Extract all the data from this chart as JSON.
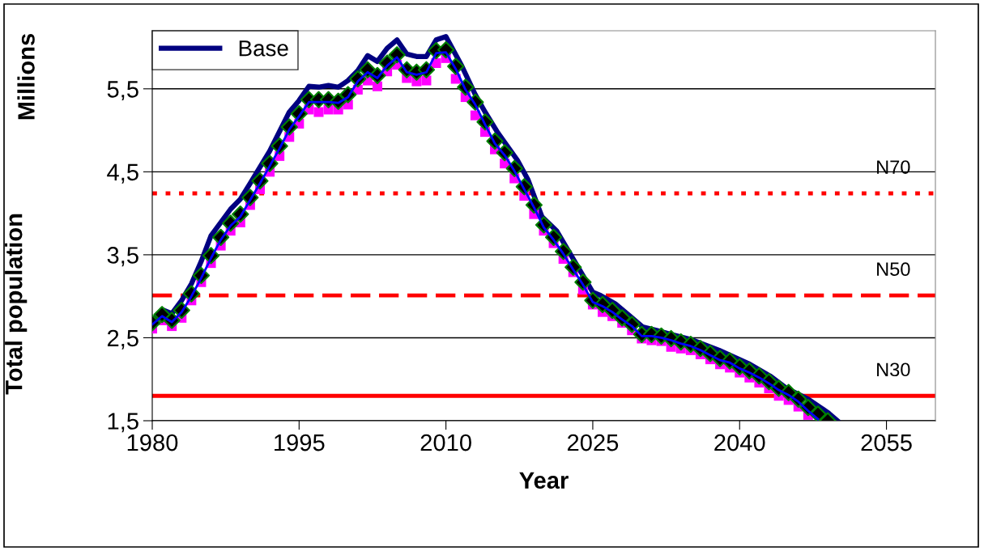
{
  "chart_data": {
    "type": "line",
    "xlabel": "Year",
    "ylabel": "Total population",
    "annotations": [
      "Millions"
    ],
    "xlim": [
      1980,
      2060
    ],
    "xticks": [
      1980,
      1995,
      2010,
      2025,
      2040,
      2055
    ],
    "ylim": [
      1.5,
      6.2
    ],
    "yticks": [
      {
        "value": 1.5,
        "label": "1,5"
      },
      {
        "value": 2.5,
        "label": "2,5"
      },
      {
        "value": 3.5,
        "label": "3,5"
      },
      {
        "value": 4.5,
        "label": "4,5"
      },
      {
        "value": 5.5,
        "label": "5,5"
      }
    ],
    "grid": "y",
    "legend": "top left",
    "series": [
      {
        "color": "#0000ff",
        "marker": "none",
        "x": [
          1980,
          1981,
          1982,
          1983,
          1984,
          1985,
          1986,
          1987,
          1988,
          1989,
          1990,
          1991,
          1992,
          1993,
          1994,
          1995,
          1996,
          1997,
          1998,
          1999,
          2000,
          2001,
          2002,
          2003,
          2004,
          2005,
          2006,
          2007,
          2008,
          2009,
          2010,
          2011,
          2012,
          2013,
          2014,
          2015,
          2016,
          2017,
          2018,
          2019,
          2020,
          2021,
          2022,
          2023,
          2024,
          2025,
          2026,
          2027,
          2028,
          2029,
          2030,
          2031,
          2032,
          2033,
          2034,
          2035,
          2036,
          2037,
          2038,
          2039,
          2040,
          2041,
          2042,
          2043,
          2044,
          2045,
          2046,
          2047,
          2048
        ],
        "values": [
          2.66,
          2.76,
          2.69,
          2.81,
          3.0,
          3.22,
          3.46,
          3.68,
          3.85,
          3.96,
          4.16,
          4.36,
          4.57,
          4.78,
          5.01,
          5.17,
          5.34,
          5.34,
          5.34,
          5.33,
          5.4,
          5.59,
          5.7,
          5.63,
          5.78,
          5.88,
          5.7,
          5.67,
          5.7,
          5.93,
          5.94,
          5.74,
          5.49,
          5.31,
          5.07,
          4.84,
          4.7,
          4.51,
          4.29,
          4.07,
          3.83,
          3.68,
          3.51,
          3.32,
          3.14,
          2.93,
          2.88,
          2.81,
          2.72,
          2.64,
          2.52,
          2.52,
          2.5,
          2.47,
          2.43,
          2.4,
          2.35,
          2.29,
          2.23,
          2.2,
          2.13,
          2.08,
          2.02,
          1.95,
          1.87,
          1.81,
          1.73,
          1.62,
          1.52
        ]
      },
      {
        "type": "scatter",
        "color": "#ff00ff",
        "marker": "square",
        "x": [
          1980,
          1981,
          1982,
          1983,
          1984,
          1985,
          1986,
          1987,
          1988,
          1989,
          1990,
          1991,
          1992,
          1993,
          1994,
          1995,
          1996,
          1997,
          1998,
          1999,
          2000,
          2001,
          2002,
          2003,
          2004,
          2005,
          2006,
          2007,
          2008,
          2009,
          2010,
          2011,
          2012,
          2013,
          2014,
          2015,
          2016,
          2017,
          2018,
          2019,
          2020,
          2021,
          2022,
          2023,
          2024,
          2025,
          2026,
          2027,
          2028,
          2029,
          2030,
          2031,
          2032,
          2033,
          2034,
          2035,
          2036,
          2037,
          2038,
          2039,
          2040,
          2041,
          2042,
          2043,
          2044,
          2045,
          2046,
          2047
        ],
        "values": [
          2.61,
          2.71,
          2.64,
          2.74,
          2.95,
          3.17,
          3.4,
          3.61,
          3.79,
          3.89,
          4.1,
          4.29,
          4.5,
          4.69,
          4.92,
          5.08,
          5.25,
          5.22,
          5.25,
          5.25,
          5.31,
          5.49,
          5.6,
          5.53,
          5.71,
          5.79,
          5.63,
          5.59,
          5.6,
          5.81,
          5.87,
          5.62,
          5.4,
          5.18,
          4.98,
          4.77,
          4.6,
          4.42,
          4.21,
          3.99,
          3.79,
          3.64,
          3.45,
          3.29,
          3.08,
          2.9,
          2.81,
          2.76,
          2.68,
          2.59,
          2.49,
          2.47,
          2.46,
          2.39,
          2.37,
          2.35,
          2.3,
          2.24,
          2.18,
          2.14,
          2.08,
          2.02,
          1.96,
          1.89,
          1.8,
          1.75,
          1.67,
          1.57
        ]
      },
      {
        "type": "scatter",
        "color": "#000000",
        "marker": "diamond",
        "x": [
          1980,
          1981,
          1982,
          1983,
          1984,
          1985,
          1986,
          1987,
          1988,
          1989,
          1990,
          1991,
          1992,
          1993,
          1994,
          1995,
          1996,
          1997,
          1998,
          1999,
          2000,
          2001,
          2002,
          2003,
          2004,
          2005,
          2006,
          2007,
          2008,
          2009,
          2010,
          2011,
          2012,
          2013,
          2014,
          2015,
          2016,
          2017,
          2018,
          2019,
          2020,
          2021,
          2022,
          2023,
          2024,
          2025,
          2026,
          2027,
          2028,
          2029,
          2030,
          2031,
          2032,
          2033,
          2034,
          2035,
          2036,
          2037,
          2038,
          2039,
          2040,
          2041,
          2042,
          2043,
          2044,
          2045,
          2046,
          2047,
          2048,
          2049
        ],
        "values": [
          2.68,
          2.78,
          2.71,
          2.83,
          3.03,
          3.25,
          3.49,
          3.71,
          3.88,
          3.99,
          4.19,
          4.39,
          4.6,
          4.81,
          5.04,
          5.2,
          5.37,
          5.37,
          5.37,
          5.35,
          5.43,
          5.62,
          5.73,
          5.66,
          5.81,
          5.91,
          5.73,
          5.7,
          5.73,
          5.96,
          5.97,
          5.77,
          5.52,
          5.34,
          5.1,
          4.87,
          4.73,
          4.54,
          4.32,
          4.1,
          3.86,
          3.71,
          3.54,
          3.35,
          3.17,
          2.95,
          2.9,
          2.83,
          2.74,
          2.66,
          2.54,
          2.54,
          2.52,
          2.49,
          2.45,
          2.42,
          2.37,
          2.31,
          2.25,
          2.22,
          2.15,
          2.1,
          2.04,
          1.97,
          1.89,
          1.84,
          1.76,
          1.66,
          1.58,
          1.5
        ]
      },
      {
        "name": "Base",
        "color": "#000080",
        "marker": "none",
        "x": [
          1980,
          1981,
          1982,
          1983,
          1984,
          1985,
          1986,
          1988,
          1989,
          1990,
          1992,
          1994,
          1995,
          1996,
          1997,
          1998,
          1999,
          2000,
          2001,
          2002,
          2003,
          2004,
          2005,
          2006,
          2007,
          2008,
          2009,
          2010,
          2011.6,
          2013,
          2014,
          2015.3,
          2017.3,
          2018.4,
          2019.8,
          2021.3,
          2023,
          2025,
          2025.8,
          2027.3,
          2028.7,
          2030.1,
          2031.5,
          2033,
          2035,
          2037.9,
          2040.9,
          2043.1,
          2044.8,
          2047,
          2049,
          2050
        ],
        "values": [
          2.7,
          2.84,
          2.79,
          2.95,
          3.15,
          3.42,
          3.73,
          4.05,
          4.17,
          4.36,
          4.75,
          5.22,
          5.36,
          5.53,
          5.52,
          5.54,
          5.52,
          5.6,
          5.72,
          5.9,
          5.83,
          5.99,
          6.09,
          5.92,
          5.89,
          5.89,
          6.09,
          6.13,
          5.78,
          5.43,
          5.22,
          4.97,
          4.64,
          4.4,
          3.96,
          3.79,
          3.45,
          3.05,
          3.01,
          2.91,
          2.77,
          2.63,
          2.59,
          2.54,
          2.48,
          2.35,
          2.19,
          2.04,
          1.89,
          1.76,
          1.6,
          1.5
        ]
      }
    ],
    "ref_lines": [
      {
        "axis": "y",
        "value": 4.24,
        "label": "N70",
        "color": "#ff0000",
        "line_style": "dotted"
      },
      {
        "axis": "y",
        "value": 3.01,
        "label": "N50",
        "color": "#ff0000",
        "line_style": "dashed"
      },
      {
        "axis": "y",
        "value": 1.8,
        "label": "N30",
        "color": "#ff0000",
        "line_style": "solid"
      }
    ]
  }
}
